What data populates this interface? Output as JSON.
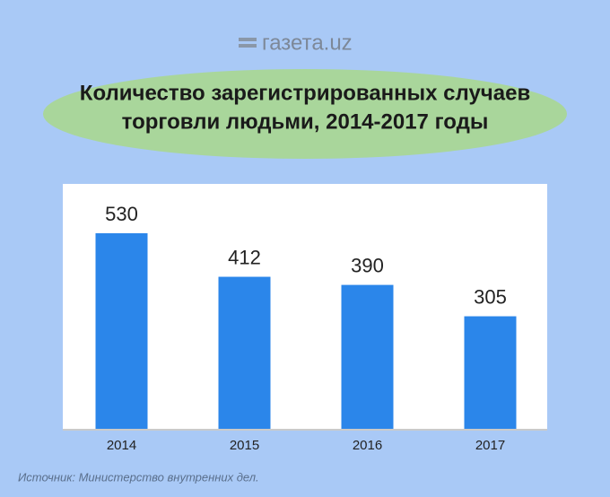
{
  "logo": "газета.uz",
  "source": "Источник: Министерство внутренних дел.",
  "chart_data": {
    "type": "bar",
    "title": [
      "Количество зарегистрированных случаев",
      "торговли людьми, 2014-2017 годы"
    ],
    "categories": [
      "2014",
      "2015",
      "2016",
      "2017"
    ],
    "values": [
      530,
      412,
      390,
      305
    ],
    "color": "#2b86ea"
  }
}
